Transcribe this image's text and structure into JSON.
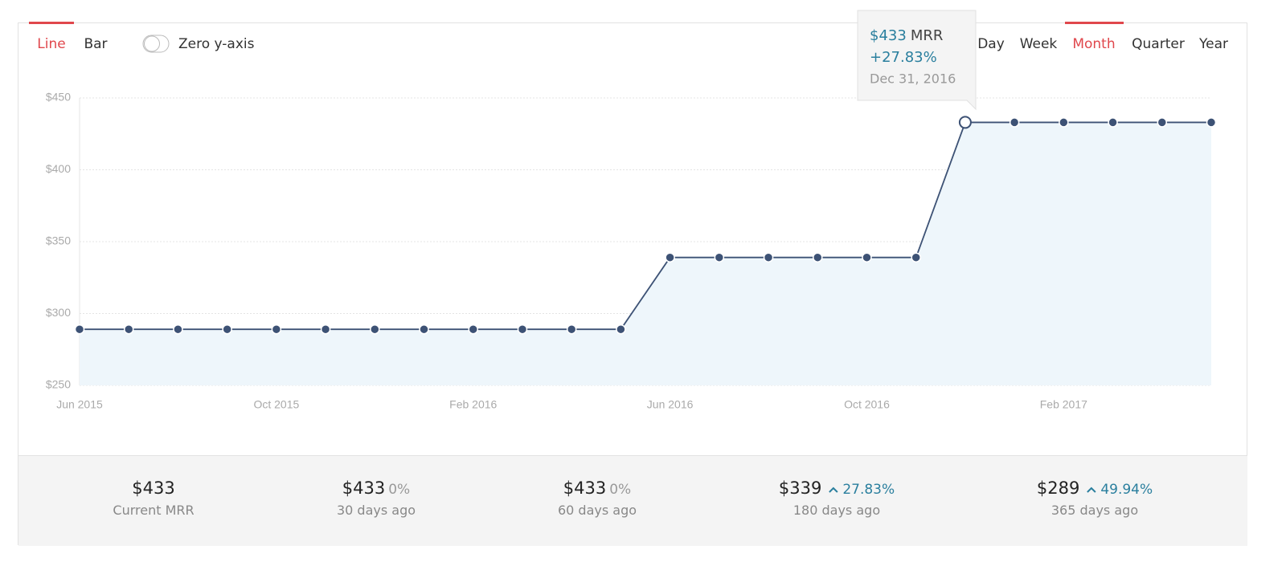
{
  "chart_tabs": [
    {
      "label": "Line",
      "active": true
    },
    {
      "label": "Bar",
      "active": false
    }
  ],
  "toggle": {
    "label": "Zero y-axis",
    "on": false
  },
  "period_tabs": [
    {
      "label": "Day",
      "active": false
    },
    {
      "label": "Week",
      "active": false
    },
    {
      "label": "Month",
      "active": true
    },
    {
      "label": "Quarter",
      "active": false
    },
    {
      "label": "Year",
      "active": false
    }
  ],
  "chart_data": {
    "type": "line",
    "x": [
      "2015-06",
      "2015-07",
      "2015-08",
      "2015-09",
      "2015-10",
      "2015-11",
      "2015-12",
      "2016-01",
      "2016-02",
      "2016-03",
      "2016-04",
      "2016-05",
      "2016-06",
      "2016-07",
      "2016-08",
      "2016-09",
      "2016-10",
      "2016-11",
      "2016-12",
      "2017-01",
      "2017-02",
      "2017-03",
      "2017-04",
      "2017-05"
    ],
    "series": [
      {
        "name": "MRR",
        "color": "#3d5275",
        "area_color": "#eef6fb",
        "values": [
          289,
          289,
          289,
          289,
          289,
          289,
          289,
          289,
          289,
          289,
          289,
          289,
          339,
          339,
          339,
          339,
          339,
          339,
          433,
          433,
          433,
          433,
          433,
          433
        ]
      }
    ],
    "xlim": [
      "2015-06",
      "2017-05"
    ],
    "xticks": [
      {
        "value": "2015-06",
        "label": "Jun 2015"
      },
      {
        "value": "2015-10",
        "label": "Oct 2015"
      },
      {
        "value": "2016-02",
        "label": "Feb 2016"
      },
      {
        "value": "2016-06",
        "label": "Jun 2016"
      },
      {
        "value": "2016-10",
        "label": "Oct 2016"
      },
      {
        "value": "2017-02",
        "label": "Feb 2017"
      }
    ],
    "ylim": [
      250,
      450
    ],
    "yticks": [
      {
        "value": 250,
        "label": "$250"
      },
      {
        "value": 300,
        "label": "$300"
      },
      {
        "value": 350,
        "label": "$350"
      },
      {
        "value": 400,
        "label": "$400"
      },
      {
        "value": 450,
        "label": "$450"
      }
    ],
    "grid": true
  },
  "tooltip": {
    "value": "$433",
    "unit": "MRR",
    "change": "+27.83%",
    "date": "Dec 31, 2016"
  },
  "stats": [
    {
      "value": "$433",
      "label": "Current MRR"
    },
    {
      "value": "$433",
      "change": "0%",
      "trend": "flat",
      "label": "30 days ago"
    },
    {
      "value": "$433",
      "change": "0%",
      "trend": "flat",
      "label": "60 days ago"
    },
    {
      "value": "$339",
      "change": "27.83%",
      "trend": "up",
      "label": "180 days ago"
    },
    {
      "value": "$289",
      "change": "49.94%",
      "trend": "up",
      "label": "365 days ago"
    }
  ]
}
